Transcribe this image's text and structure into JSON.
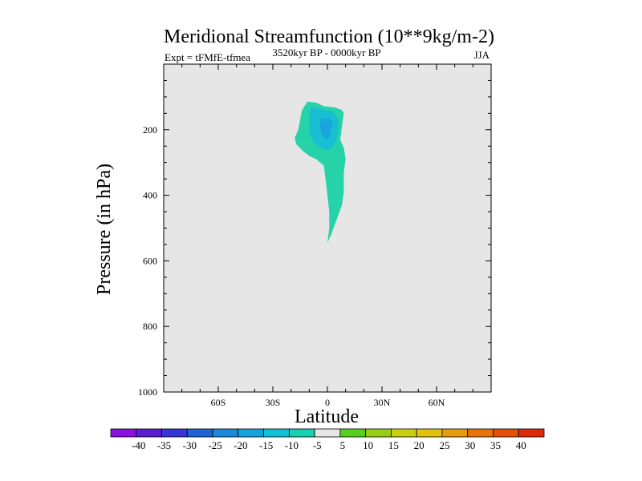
{
  "chart_data": {
    "type": "contour",
    "title": "Meridional Streamfunction (10**9kg/m-2)",
    "left_label": "Expt = tFMfE-tfmea",
    "center_label": "3520kyr BP - 0000kyr BP",
    "right_label": "JJA",
    "xlabel": "Latitude",
    "ylabel": "Pressure (in hPa)",
    "xlim": [
      -90,
      90
    ],
    "ylim": [
      1000,
      0
    ],
    "x_ticks": [
      {
        "value": -60,
        "label": "60S"
      },
      {
        "value": -30,
        "label": "30S"
      },
      {
        "value": 0,
        "label": "0"
      },
      {
        "value": 30,
        "label": "30N"
      },
      {
        "value": 60,
        "label": "60N"
      }
    ],
    "y_ticks": [
      {
        "value": 200,
        "label": "200"
      },
      {
        "value": 400,
        "label": "400"
      },
      {
        "value": 600,
        "label": "600"
      },
      {
        "value": 800,
        "label": "800"
      },
      {
        "value": 1000,
        "label": "1000"
      }
    ],
    "background_color": "#e6e6e6",
    "colorbar": {
      "levels": [
        "-40",
        "-35",
        "-30",
        "-25",
        "-20",
        "-15",
        "-10",
        "-5",
        "5",
        "10",
        "15",
        "20",
        "25",
        "30",
        "35",
        "40"
      ],
      "colors": [
        "#8a12e0",
        "#5a1ccf",
        "#3636d8",
        "#1f64d4",
        "#1c88d8",
        "#17a4dc",
        "#0fc0d6",
        "#16d0b0",
        "#e6e6e6",
        "#55d020",
        "#96d015",
        "#c8d012",
        "#e2c20e",
        "#e69c0c",
        "#e6740a",
        "#e45008",
        "#e02a06"
      ]
    },
    "regions": [
      {
        "level": "-10 to -5",
        "color": "#26d2a8",
        "outline": [
          [
            -11,
            114
          ],
          [
            -6,
            118
          ],
          [
            -2,
            128
          ],
          [
            4,
            132
          ],
          [
            8,
            140
          ],
          [
            9,
            150
          ],
          [
            8,
            190
          ],
          [
            7,
            230
          ],
          [
            9,
            255
          ],
          [
            10,
            290
          ],
          [
            9,
            330
          ],
          [
            9,
            390
          ],
          [
            8,
            430
          ],
          [
            6,
            460
          ],
          [
            4,
            490
          ],
          [
            2,
            520
          ],
          [
            0,
            545
          ],
          [
            1,
            500
          ],
          [
            1,
            450
          ],
          [
            0,
            400
          ],
          [
            -1,
            350
          ],
          [
            -2,
            310
          ],
          [
            -6,
            290
          ],
          [
            -10,
            280
          ],
          [
            -14,
            262
          ],
          [
            -17,
            245
          ],
          [
            -18,
            225
          ],
          [
            -16,
            200
          ],
          [
            -15,
            170
          ],
          [
            -14,
            140
          ]
        ]
      },
      {
        "level": "-15 to -10",
        "color": "#18bfd2",
        "outline": [
          [
            -9,
            130
          ],
          [
            -3,
            138
          ],
          [
            3,
            145
          ],
          [
            6,
            170
          ],
          [
            6,
            200
          ],
          [
            5,
            230
          ],
          [
            3,
            255
          ],
          [
            0,
            262
          ],
          [
            -4,
            255
          ],
          [
            -8,
            235
          ],
          [
            -10,
            210
          ],
          [
            -10,
            180
          ],
          [
            -10,
            150
          ]
        ]
      },
      {
        "level": "-20 to -15",
        "color": "#1aa6da",
        "outline": [
          [
            -3,
            165
          ],
          [
            1,
            167
          ],
          [
            3,
            180
          ],
          [
            2,
            205
          ],
          [
            1,
            225
          ],
          [
            -1,
            230
          ],
          [
            -3,
            215
          ],
          [
            -4,
            195
          ],
          [
            -4,
            178
          ]
        ]
      }
    ]
  }
}
